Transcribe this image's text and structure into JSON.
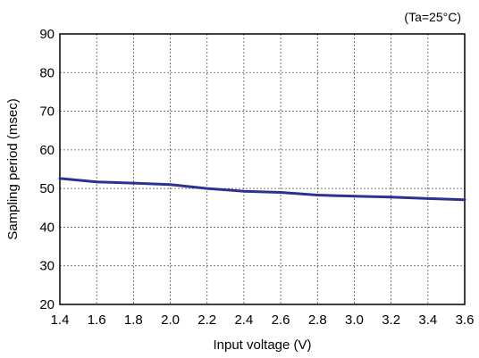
{
  "chart_data": {
    "type": "line",
    "title": "",
    "annotation": "(Ta=25°C)",
    "xlabel": "Input voltage (V)",
    "ylabel": "Sampling period (msec)",
    "xlim": [
      1.4,
      3.6
    ],
    "ylim": [
      20,
      90
    ],
    "xticks": [
      "1.4",
      "1.6",
      "1.8",
      "2.0",
      "2.2",
      "2.4",
      "2.6",
      "2.8",
      "3.0",
      "3.2",
      "3.4",
      "3.6"
    ],
    "yticks": [
      "20",
      "30",
      "40",
      "50",
      "60",
      "70",
      "80",
      "90"
    ],
    "grid": true,
    "line_color": "#2e3192",
    "series": [
      {
        "x": [
          1.4,
          1.6,
          1.8,
          2.0,
          2.2,
          2.4,
          2.6,
          2.8,
          3.0,
          3.2,
          3.4,
          3.6
        ],
        "values": [
          52.6,
          51.7,
          51.4,
          51.0,
          50.0,
          49.3,
          49.0,
          48.3,
          48.0,
          47.8,
          47.4,
          47.1
        ]
      }
    ]
  }
}
